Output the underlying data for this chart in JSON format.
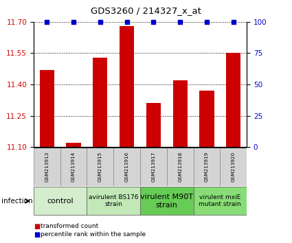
{
  "title": "GDS3260 / 214327_x_at",
  "samples": [
    "GSM213913",
    "GSM213914",
    "GSM213915",
    "GSM213916",
    "GSM213917",
    "GSM213918",
    "GSM213919",
    "GSM213920"
  ],
  "bar_values": [
    11.47,
    11.12,
    11.53,
    11.68,
    11.31,
    11.42,
    11.37,
    11.55
  ],
  "percentile_values": [
    100,
    100,
    100,
    100,
    100,
    100,
    100,
    100
  ],
  "bar_color": "#cc0000",
  "percentile_color": "#0000cc",
  "ylim_left": [
    11.1,
    11.7
  ],
  "ylim_right": [
    0,
    100
  ],
  "yticks_left": [
    11.1,
    11.25,
    11.4,
    11.55,
    11.7
  ],
  "yticks_right": [
    0,
    25,
    50,
    75,
    100
  ],
  "groups": [
    {
      "label": "control",
      "span": [
        0,
        2
      ],
      "color": "#d4edcc",
      "fontsize": 8
    },
    {
      "label": "avirulent BS176\nstrain",
      "span": [
        2,
        4
      ],
      "color": "#c2e8b8",
      "fontsize": 6.5
    },
    {
      "label": "virulent M90T\nstrain",
      "span": [
        4,
        6
      ],
      "color": "#66cc55",
      "fontsize": 8
    },
    {
      "label": "virulent mxiE\nmutant strain",
      "span": [
        6,
        8
      ],
      "color": "#88dd77",
      "fontsize": 6.5
    }
  ],
  "infection_label": "infection",
  "legend_items": [
    {
      "label": "transformed count",
      "color": "#cc0000"
    },
    {
      "label": "percentile rank within the sample",
      "color": "#0000cc"
    }
  ],
  "bar_width": 0.55,
  "background_color": "#ffffff",
  "tick_label_color_left": "#cc0000",
  "tick_label_color_right": "#0000cc",
  "sample_bg": "#c8c8c8",
  "sample_box_bg": "#d4d4d4"
}
